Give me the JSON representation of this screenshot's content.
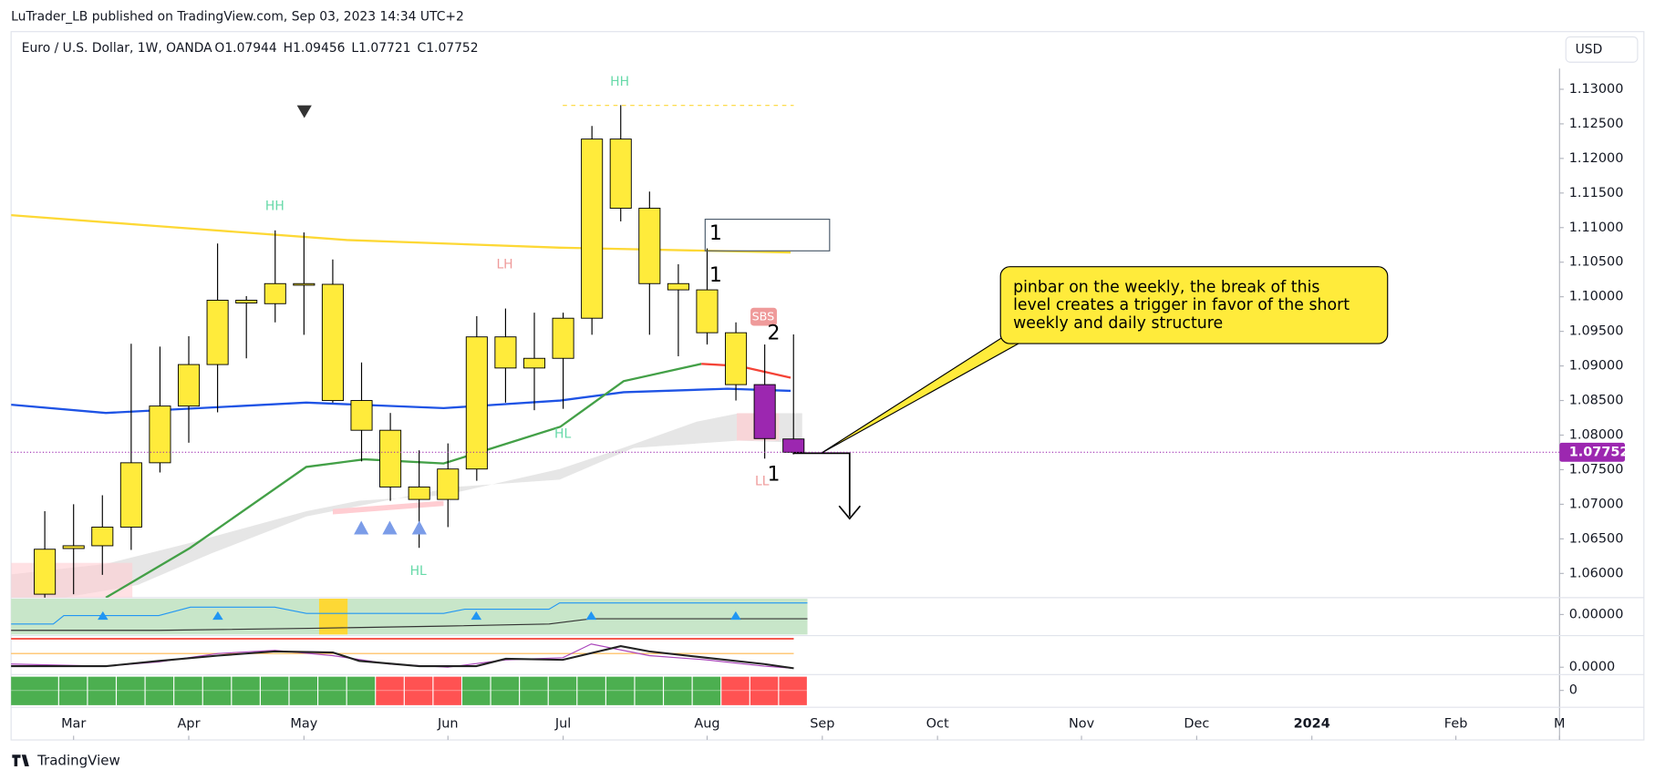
{
  "header": {
    "published": "LuTrader_LB published on TradingView.com, Sep 03, 2023 14:34 UTC+2",
    "symbol": "Euro / U.S. Dollar, 1W, OANDA",
    "ohlc": [
      {
        "label": "O",
        "value": 1.07944
      },
      {
        "label": "H",
        "value": 1.09456
      },
      {
        "label": "L",
        "value": 1.07721
      },
      {
        "label": "C",
        "value": 1.07752
      }
    ],
    "currency": "USD"
  },
  "footer": {
    "logo": "TradingView"
  },
  "chart_data": {
    "type": "candlestick",
    "categories": [
      null,
      null,
      null,
      null,
      null,
      null,
      null,
      null,
      null,
      null,
      null,
      null,
      null,
      null,
      null,
      null,
      null,
      null,
      null,
      null,
      null,
      null,
      null,
      null,
      null,
      null,
      null
    ],
    "open": [
      1.057,
      1.0636,
      1.064,
      1.0667,
      1.076,
      1.0842,
      1.0902,
      1.0995,
      1.099,
      1.1019,
      1.1018,
      1.085,
      1.0807,
      1.0725,
      1.0707,
      1.0751,
      1.0942,
      1.0897,
      1.0911,
      1.0969,
      1.1228,
      1.1128,
      1.1019,
      1.101,
      1.0948,
      1.0873,
      1.07944
    ],
    "high": [
      1.069,
      1.07,
      1.0713,
      1.0932,
      1.0928,
      1.0943,
      1.1077,
      1.1001,
      1.1096,
      1.1093,
      1.1054,
      1.0905,
      1.0832,
      1.0778,
      1.0788,
      1.0972,
      1.0983,
      1.0977,
      1.0977,
      1.1247,
      1.1277,
      1.1152,
      1.1047,
      1.107,
      1.0963,
      1.0931,
      1.09456
    ],
    "low": [
      1.0555,
      1.057,
      1.0598,
      1.0634,
      1.0746,
      1.0789,
      1.0833,
      1.0911,
      1.0963,
      1.0945,
      1.0847,
      1.0762,
      1.0705,
      1.0637,
      1.0667,
      1.0734,
      1.0847,
      1.0836,
      1.0838,
      1.0945,
      1.1109,
      1.0945,
      1.0914,
      1.0931,
      1.085,
      1.0766,
      1.07721
    ],
    "close": [
      1.0635,
      1.064,
      1.0667,
      1.076,
      1.0842,
      1.0902,
      1.0995,
      1.0991,
      1.1019,
      1.1018,
      1.085,
      1.0807,
      1.0725,
      1.0707,
      1.0751,
      1.0942,
      1.0897,
      1.0911,
      1.0969,
      1.1228,
      1.1128,
      1.1019,
      1.101,
      1.0948,
      1.0873,
      1.0795,
      1.07752
    ],
    "colors": [
      "#ffeb3b",
      "#ffeb3b",
      "#ffeb3b",
      "#ffeb3b",
      "#ffeb3b",
      "#ffeb3b",
      "#ffeb3b",
      "#ffeb3b",
      "#ffeb3b",
      "#ffeb3b",
      "#ffeb3b",
      "#ffeb3b",
      "#ffeb3b",
      "#ffeb3b",
      "#ffeb3b",
      "#ffeb3b",
      "#ffeb3b",
      "#ffeb3b",
      "#ffeb3b",
      "#ffeb3b",
      "#ffeb3b",
      "#ffeb3b",
      "#ffeb3b",
      "#ffeb3b",
      "#ffeb3b",
      "#9c27b0",
      "#9c27b0"
    ],
    "lines": [
      {
        "color": "#fdd835",
        "x": [
          -1.17,
          3.96,
          10.5,
          17.9,
          25.9
        ],
        "y": [
          1.1118,
          1.1102,
          1.1082,
          1.1071,
          1.1064
        ]
      },
      {
        "color": "#1e53e5",
        "x": [
          -1.17,
          2.12,
          9.08,
          13.85,
          17.9,
          20.1,
          23.7,
          25.9
        ],
        "y": [
          1.0844,
          1.0832,
          1.0847,
          1.0839,
          1.085,
          1.0862,
          1.0867,
          1.0864
        ]
      },
      {
        "color": "#43a047",
        "x": [
          2.12,
          5.05,
          9.08,
          11.1,
          13.85,
          17.9,
          20.1,
          22.8
        ],
        "y": [
          1.0565,
          1.0637,
          1.0754,
          1.0765,
          1.0759,
          1.0812,
          1.0878,
          1.0903
        ]
      },
      {
        "color": "#f44336",
        "x": [
          22.8,
          24.1,
          25.9
        ],
        "y": [
          1.0903,
          1.09,
          1.0883
        ]
      }
    ],
    "last_price": 1.07752,
    "last_price_color": "#9c27b0",
    "ylim": [
      1.0565,
      1.133
    ],
    "yticks": [
      {
        "value": 1.13,
        "label": "1.13000"
      },
      {
        "value": 1.125,
        "label": "1.12500"
      },
      {
        "value": 1.12,
        "label": "1.12000"
      },
      {
        "value": 1.115,
        "label": "1.11500"
      },
      {
        "value": 1.11,
        "label": "1.11000"
      },
      {
        "value": 1.105,
        "label": "1.10500"
      },
      {
        "value": 1.1,
        "label": "1.10000"
      },
      {
        "value": 1.095,
        "label": "1.09500"
      },
      {
        "value": 1.09,
        "label": "1.09000"
      },
      {
        "value": 1.085,
        "label": "1.08500"
      },
      {
        "value": 1.08,
        "label": "1.08000"
      },
      {
        "value": 1.075,
        "label": "1.07500"
      },
      {
        "value": 1.07,
        "label": "1.07000"
      },
      {
        "value": 1.065,
        "label": "1.06500"
      },
      {
        "value": 1.06,
        "label": "1.06000"
      }
    ],
    "xlim": [
      -1.17,
      52.6
    ],
    "xticks": [
      {
        "value": 1,
        "label": "Mar"
      },
      {
        "value": 5,
        "label": "Apr"
      },
      {
        "value": 9,
        "label": "May"
      },
      {
        "value": 14,
        "label": "Jun"
      },
      {
        "value": 18,
        "label": "Jul"
      },
      {
        "value": 23,
        "label": "Aug"
      },
      {
        "value": 27,
        "label": "Sep"
      },
      {
        "value": 31,
        "label": "Oct"
      },
      {
        "value": 36,
        "label": "Nov"
      },
      {
        "value": 40,
        "label": "Dec"
      },
      {
        "value": 44,
        "label": "2024"
      },
      {
        "value": 49,
        "label": "Feb"
      },
      {
        "value": 52.6,
        "label": "M"
      }
    ],
    "pane_ticks": [
      {
        "value": 0,
        "label": "0.00000"
      },
      {
        "value": 0,
        "label": "0.0000"
      },
      0
    ],
    "signal_colors": [
      "#4caf50",
      "#4caf50",
      "#4caf50",
      "#4caf50",
      "#4caf50",
      "#4caf50",
      "#4caf50",
      "#4caf50",
      "#4caf50",
      "#4caf50",
      "#4caf50",
      "#4caf50",
      "#ff5252",
      "#ff5252",
      "#ff5252",
      "#4caf50",
      "#4caf50",
      "#4caf50",
      "#4caf50",
      "#4caf50",
      "#4caf50",
      "#4caf50",
      "#4caf50",
      "#4caf50",
      "#ff5252",
      "#ff5252",
      "#ff5252"
    ],
    "annotations": [
      "HH",
      "HH",
      "LH",
      "HL",
      "HL",
      "LL",
      "SBS",
      "1",
      "1",
      "2",
      "1"
    ],
    "callout": [
      "pinbar on the weekly, the break of this",
      "level creates a trigger in favor of the short",
      "weekly and daily structure"
    ]
  }
}
